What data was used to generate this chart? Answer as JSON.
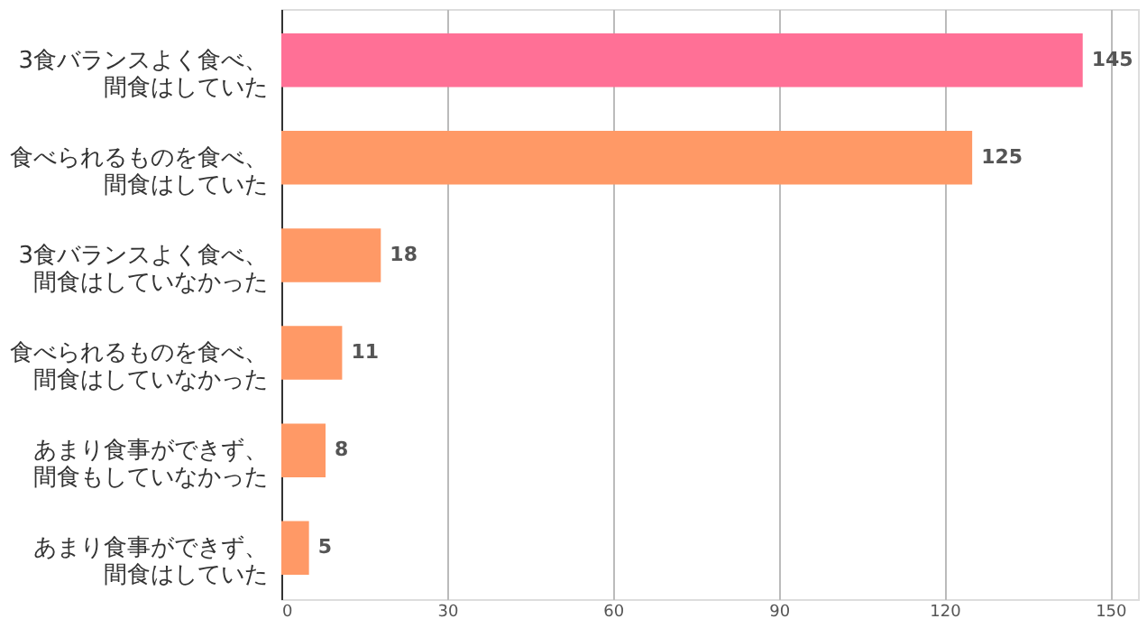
{
  "chart_data": {
    "type": "bar",
    "orientation": "horizontal",
    "categories": [
      "3食バランスよく食べ、間食はしていた",
      "食べられるものを食べ、間食はしていた",
      "3食バランスよく食べ、間食はしていなかった",
      "食べられるものを食べ、間食はしていなかった",
      "あまり食事ができず、間食もしていなかった",
      "あまり食事ができず、間食はしていた"
    ],
    "values": [
      145,
      125,
      18,
      11,
      8,
      5
    ],
    "colors": [
      "#ff7096",
      "#ff9966",
      "#ff9966",
      "#ff9966",
      "#ff9966",
      "#ff9966"
    ],
    "xlim": [
      0,
      155
    ],
    "xticks": [
      0,
      30,
      60,
      90,
      120,
      150
    ],
    "grid": "x",
    "data_labels": true
  }
}
